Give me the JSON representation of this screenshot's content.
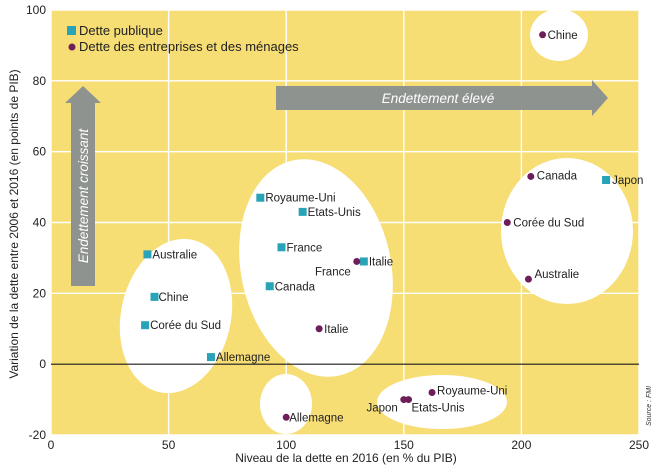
{
  "colors": {
    "background": "#f6dd74",
    "cluster": "#ffffff",
    "public_debt": "#29a3b8",
    "private_debt": "#6e1e5a",
    "arrow": "#8f9390",
    "grid": "#ffffff",
    "zero_line": "#1a1a1a"
  },
  "chart_data": {
    "type": "scatter",
    "title": "",
    "xlabel": "Niveau de la dette en 2016 (en % du PIB)",
    "ylabel": "Variation de la dette entre 2006 et 2016 (en points de PIB)",
    "xlim": [
      0,
      250
    ],
    "ylim": [
      -20,
      100
    ],
    "xticks": [
      0,
      50,
      100,
      150,
      200,
      250
    ],
    "yticks": [
      -20,
      0,
      20,
      40,
      60,
      80,
      100
    ],
    "legend": {
      "position": "top-left",
      "entries": [
        {
          "label": "Dette publique",
          "marker": "square",
          "series": "public"
        },
        {
          "label": "Dette des entreprises et des ménages",
          "marker": "circle",
          "series": "private"
        }
      ]
    },
    "series": [
      {
        "name": "Dette publique",
        "marker": "square",
        "points": [
          {
            "label": "Japon",
            "x": 236,
            "y": 52
          },
          {
            "label": "Royaume-Uni",
            "x": 89,
            "y": 47
          },
          {
            "label": "Etats-Unis",
            "x": 107,
            "y": 43
          },
          {
            "label": "France",
            "x": 98,
            "y": 33
          },
          {
            "label": "Italie",
            "x": 133,
            "y": 29
          },
          {
            "label": "Canada",
            "x": 93,
            "y": 22
          },
          {
            "label": "Australie",
            "x": 41,
            "y": 31
          },
          {
            "label": "Chine",
            "x": 44,
            "y": 19
          },
          {
            "label": "Corée du Sud",
            "x": 40,
            "y": 11
          },
          {
            "label": "Allemagne",
            "x": 68,
            "y": 2
          }
        ]
      },
      {
        "name": "Dette des entreprises et des ménages",
        "marker": "circle",
        "points": [
          {
            "label": "Chine",
            "x": 209,
            "y": 93
          },
          {
            "label": "Canada",
            "x": 204,
            "y": 53
          },
          {
            "label": "Corée du Sud",
            "x": 194,
            "y": 40
          },
          {
            "label": "Australie",
            "x": 203,
            "y": 24
          },
          {
            "label": "France",
            "x": 130,
            "y": 29
          },
          {
            "label": "Italie",
            "x": 114,
            "y": 10
          },
          {
            "label": "Royaume-Uni",
            "x": 162,
            "y": -8
          },
          {
            "label": "Japon",
            "x": 150,
            "y": -10
          },
          {
            "label": "Etats-Unis",
            "x": 152,
            "y": -10
          },
          {
            "label": "Allemagne",
            "x": 100,
            "y": -15
          }
        ]
      }
    ],
    "annotations": {
      "horizontal_arrow": "Endettement élevé",
      "vertical_arrow": "Endettement croissant",
      "source": "Source : FMI"
    }
  }
}
